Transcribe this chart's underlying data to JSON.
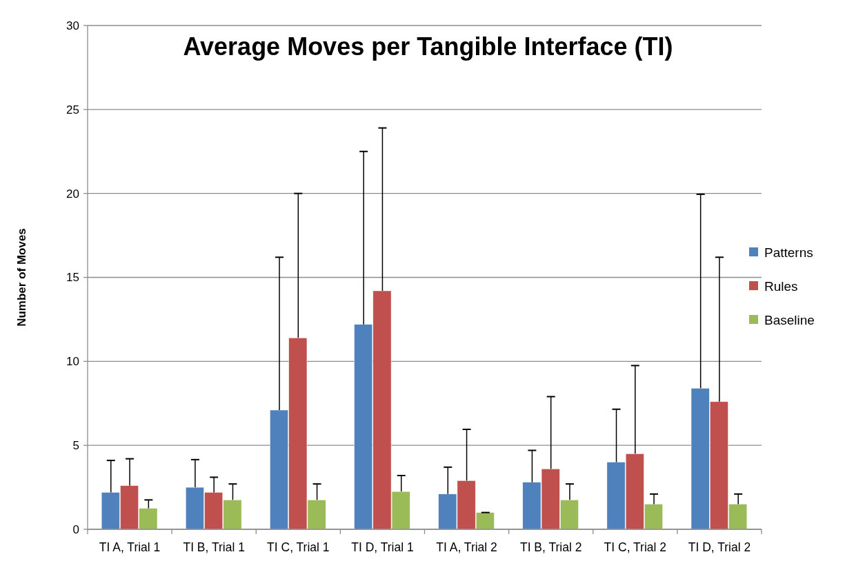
{
  "chart_data": {
    "type": "bar",
    "title": "Average Moves per Tangible Interface (TI)",
    "ylabel": "Number of Moves",
    "categories": [
      "TI A, Trial 1",
      "TI B, Trial 1",
      "TI C, Trial 1",
      "TI D, Trial 1",
      "TI A, Trial 2",
      "TI B, Trial 2",
      "TI C, Trial 2",
      "TI D, Trial 2"
    ],
    "series": [
      {
        "name": "Patterns",
        "color": "#4f81bd",
        "values": [
          2.2,
          2.5,
          7.1,
          12.2,
          2.1,
          2.8,
          4.0,
          8.4
        ],
        "errors": [
          [
            2.2,
            4.1
          ],
          [
            2.5,
            4.15
          ],
          [
            7.1,
            16.2
          ],
          [
            12.2,
            22.5
          ],
          [
            2.1,
            3.7
          ],
          [
            2.8,
            4.7
          ],
          [
            4.0,
            7.15
          ],
          [
            8.4,
            19.95
          ]
        ]
      },
      {
        "name": "Rules",
        "color": "#c0504d",
        "values": [
          2.6,
          2.2,
          11.4,
          14.2,
          2.9,
          3.6,
          4.5,
          7.6
        ],
        "errors": [
          [
            2.6,
            4.2
          ],
          [
            2.2,
            3.1
          ],
          [
            11.4,
            20.0
          ],
          [
            14.2,
            23.9
          ],
          [
            2.9,
            5.95
          ],
          [
            3.6,
            7.9
          ],
          [
            4.5,
            9.75
          ],
          [
            7.6,
            16.2
          ]
        ]
      },
      {
        "name": "Baseline",
        "color": "#9bbb59",
        "values": [
          1.25,
          1.75,
          1.75,
          2.25,
          1.0,
          1.75,
          1.5,
          1.5
        ],
        "errors": [
          [
            1.25,
            1.75
          ],
          [
            1.75,
            2.7
          ],
          [
            1.75,
            2.7
          ],
          [
            2.25,
            3.2
          ],
          [
            1.0,
            1.0
          ],
          [
            1.75,
            2.7
          ],
          [
            1.5,
            2.1
          ],
          [
            1.5,
            2.1
          ]
        ]
      }
    ],
    "ylim": [
      0,
      30
    ],
    "yticks": [
      0,
      5,
      10,
      15,
      20,
      25,
      30
    ],
    "grid": "y",
    "legend": "right"
  }
}
